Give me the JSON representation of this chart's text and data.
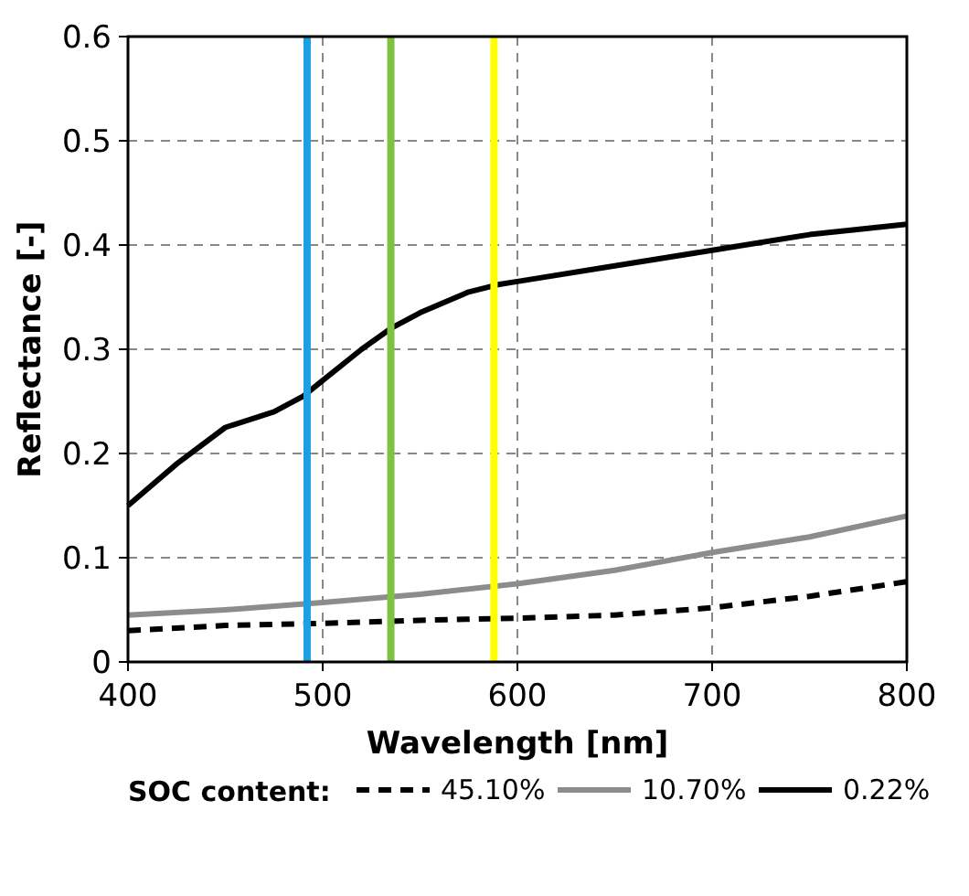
{
  "chart_data": {
    "type": "line",
    "xlabel": "Wavelength [nm]",
    "ylabel": "Reflectance [-]",
    "legend_title": "SOC content:",
    "xlim": [
      400,
      800
    ],
    "ylim": [
      0,
      0.6
    ],
    "xticks": [
      400,
      500,
      600,
      700,
      800
    ],
    "yticks": [
      0,
      0.1,
      0.2,
      0.3,
      0.4,
      0.5,
      0.6
    ],
    "grid": true,
    "legend": "bottom",
    "series": [
      {
        "name": "45.10%",
        "color": "#000000",
        "line_style": "dashed",
        "x": [
          400,
          450,
          500,
          550,
          600,
          650,
          700,
          750,
          800
        ],
        "values": [
          0.03,
          0.035,
          0.037,
          0.04,
          0.042,
          0.045,
          0.052,
          0.063,
          0.077
        ]
      },
      {
        "name": "10.70%",
        "color": "#8c8c8c",
        "line_style": "solid",
        "x": [
          400,
          450,
          500,
          550,
          600,
          650,
          700,
          750,
          800
        ],
        "values": [
          0.045,
          0.05,
          0.057,
          0.065,
          0.075,
          0.088,
          0.105,
          0.12,
          0.14
        ]
      },
      {
        "name": "0.22%",
        "color": "#000000",
        "line_style": "solid",
        "x": [
          400,
          425,
          450,
          475,
          490,
          500,
          520,
          535,
          550,
          575,
          590,
          600,
          650,
          700,
          750,
          800
        ],
        "values": [
          0.15,
          0.19,
          0.225,
          0.24,
          0.255,
          0.27,
          0.3,
          0.32,
          0.335,
          0.355,
          0.362,
          0.365,
          0.38,
          0.395,
          0.41,
          0.42
        ]
      }
    ],
    "ref_lines": [
      {
        "axis": "x",
        "value": 492,
        "color": "#1ba1e2"
      },
      {
        "axis": "x",
        "value": 535,
        "color": "#7dc242"
      },
      {
        "axis": "x",
        "value": 588,
        "color": "#ffff00"
      }
    ]
  }
}
